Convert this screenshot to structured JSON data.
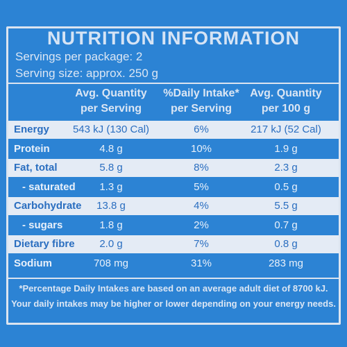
{
  "header": {
    "title": "NUTRITION INFORMATION",
    "servings": "Servings per package: 2",
    "serving_size": "Serving size: approx. 250 g"
  },
  "table": {
    "columns": [
      [
        "Avg. Quantity",
        "per Serving"
      ],
      [
        "%Daily Intake*",
        "per Serving"
      ],
      [
        "Avg. Quantity",
        "per 100 g"
      ]
    ],
    "rows": [
      [
        "Energy",
        "543 kJ (130 Cal)",
        "6%",
        "217 kJ (52 Cal)"
      ],
      [
        "Protein",
        "4.8 g",
        "10%",
        "1.9 g"
      ],
      [
        "Fat, total",
        "5.8 g",
        "8%",
        "2.3 g"
      ],
      [
        "- saturated",
        "1.3 g",
        "5%",
        "0.5 g"
      ],
      [
        "Carbohydrate",
        "13.8 g",
        "4%",
        "5.5 g"
      ],
      [
        "- sugars",
        "1.8 g",
        "2%",
        "0.7 g"
      ],
      [
        "Dietary fibre",
        "2.0 g",
        "7%",
        "0.8 g"
      ],
      [
        "Sodium",
        "708 mg",
        "31%",
        "283 mg"
      ]
    ]
  },
  "footnote": [
    "*Percentage Daily Intakes are based on an average adult diet of 8700 kJ.",
    "Your daily intakes may be higher or lower depending on your energy needs."
  ]
}
